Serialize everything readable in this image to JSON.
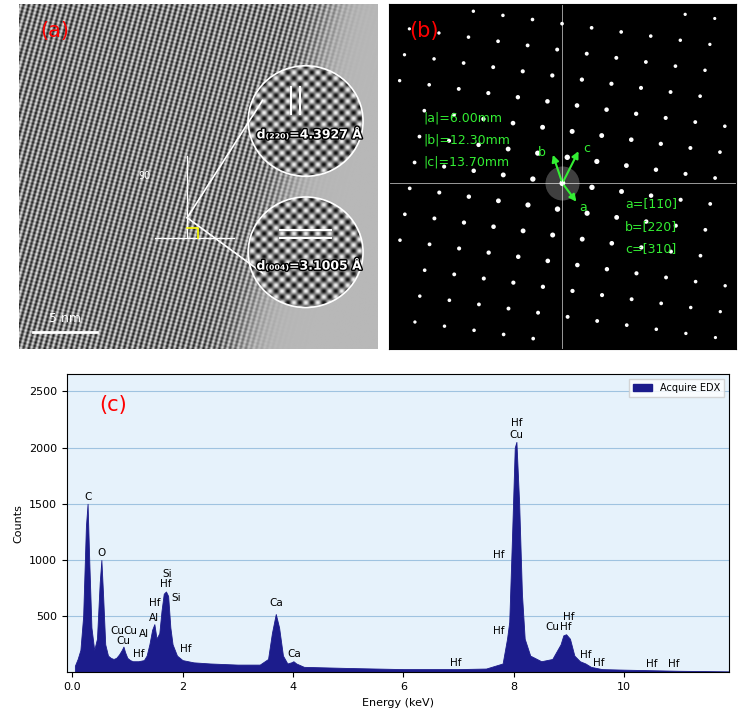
{
  "panel_a": {
    "label": "(a)",
    "scale_bar": "5 nm",
    "angle": "90",
    "insets": [
      {
        "text": "d₍₂₂₀₎=4.3927 Å"
      },
      {
        "text": "d₍₀₀₄₎=3.1005 Å"
      }
    ]
  },
  "panel_b": {
    "label": "(b)",
    "magnitudes": [
      "|a|=6.00mm",
      "|b|=12.30mm",
      "|c|=13.70mm"
    ],
    "indices": [
      "a=[11̄0]",
      "b=[220]",
      "c=[310]"
    ],
    "vectors": [
      "a",
      "b",
      "c"
    ]
  },
  "chart_data": {
    "type": "area",
    "label": "(c)",
    "x_label": "Energy (keV)",
    "y_label": "Counts",
    "xlim": [
      -0.1,
      11.9
    ],
    "ylim": [
      0,
      2650
    ],
    "xticks": [
      {
        "value": 0,
        "label": "0.0"
      },
      2,
      4,
      6,
      8,
      10
    ],
    "yticks": [
      500,
      1000,
      1500,
      2000,
      2500
    ],
    "grid": true,
    "legend": "upper right",
    "series": [
      {
        "name": "Acquire EDX",
        "color": "#1c1c8c",
        "x": [
          0.05,
          0.1,
          0.15,
          0.2,
          0.25,
          0.28,
          0.31,
          0.35,
          0.4,
          0.45,
          0.5,
          0.53,
          0.56,
          0.6,
          0.65,
          0.7,
          0.75,
          0.8,
          0.85,
          0.9,
          0.93,
          0.96,
          1.0,
          1.05,
          1.1,
          1.15,
          1.2,
          1.25,
          1.3,
          1.35,
          1.4,
          1.45,
          1.49,
          1.53,
          1.58,
          1.62,
          1.66,
          1.7,
          1.74,
          1.78,
          1.82,
          1.9,
          2.0,
          2.2,
          2.5,
          3.0,
          3.4,
          3.55,
          3.62,
          3.69,
          3.75,
          3.82,
          3.9,
          3.97,
          4.01,
          4.06,
          4.2,
          5.0,
          6.0,
          7.0,
          7.5,
          7.8,
          7.88,
          7.92,
          7.97,
          8.02,
          8.05,
          8.1,
          8.15,
          8.2,
          8.3,
          8.5,
          8.7,
          8.85,
          8.9,
          8.95,
          9.02,
          9.1,
          9.2,
          9.3,
          9.4,
          9.6,
          10.0,
          10.5,
          11.0,
          11.9
        ],
        "values": [
          60,
          120,
          200,
          500,
          1300,
          1500,
          1000,
          400,
          200,
          300,
          800,
          1000,
          700,
          250,
          150,
          130,
          120,
          130,
          160,
          200,
          230,
          180,
          130,
          110,
          100,
          100,
          100,
          105,
          110,
          150,
          250,
          380,
          430,
          300,
          350,
          550,
          700,
          720,
          680,
          400,
          250,
          150,
          110,
          90,
          80,
          70,
          70,
          120,
          350,
          520,
          400,
          150,
          80,
          90,
          100,
          80,
          50,
          40,
          30,
          30,
          35,
          80,
          300,
          450,
          1200,
          2000,
          2050,
          1500,
          700,
          300,
          150,
          100,
          120,
          250,
          330,
          340,
          300,
          150,
          100,
          80,
          50,
          30,
          25,
          20,
          15,
          10
        ]
      }
    ],
    "annotations": [
      {
        "text": "C",
        "x": 0.28,
        "y": 1520,
        "align": "center"
      },
      {
        "text": "O",
        "x": 0.53,
        "y": 1020,
        "align": "center"
      },
      {
        "text": "Cu",
        "x": 0.82,
        "y": 320,
        "align": "center"
      },
      {
        "text": "Cu",
        "x": 1.05,
        "y": 320,
        "align": "center"
      },
      {
        "text": "Cu",
        "x": 0.93,
        "y": 235,
        "align": "center"
      },
      {
        "text": "Hf",
        "x": 1.2,
        "y": 120,
        "align": "center"
      },
      {
        "text": "Al",
        "x": 1.49,
        "y": 440,
        "align": "center"
      },
      {
        "text": "Al",
        "x": 1.4,
        "y": 300,
        "align": "right"
      },
      {
        "text": "Si",
        "x": 1.72,
        "y": 830,
        "align": "center"
      },
      {
        "text": "Hf",
        "x": 1.7,
        "y": 740,
        "align": "center"
      },
      {
        "text": "Hf",
        "x": 1.6,
        "y": 570,
        "align": "right"
      },
      {
        "text": "Si",
        "x": 1.8,
        "y": 620,
        "align": "left"
      },
      {
        "text": "Hf",
        "x": 1.95,
        "y": 160,
        "align": "left"
      },
      {
        "text": "Ca",
        "x": 3.69,
        "y": 570,
        "align": "center"
      },
      {
        "text": "Ca",
        "x": 4.02,
        "y": 120,
        "align": "center"
      },
      {
        "text": "Hf",
        "x": 6.95,
        "y": 40,
        "align": "center"
      },
      {
        "text": "Hf",
        "x": 7.84,
        "y": 1000,
        "align": "right"
      },
      {
        "text": "Hf",
        "x": 7.84,
        "y": 320,
        "align": "right"
      },
      {
        "text": "Cu",
        "x": 8.05,
        "y": 2070,
        "align": "center"
      },
      {
        "text": "Hf",
        "x": 8.05,
        "y": 2170,
        "align": "center"
      },
      {
        "text": "Cu",
        "x": 8.82,
        "y": 360,
        "align": "right"
      },
      {
        "text": "Hf",
        "x": 8.95,
        "y": 360,
        "align": "center"
      },
      {
        "text": "Hf",
        "x": 9.0,
        "y": 450,
        "align": "center"
      },
      {
        "text": "Hf",
        "x": 9.3,
        "y": 110,
        "align": "center"
      },
      {
        "text": "Hf",
        "x": 9.55,
        "y": 40,
        "align": "center"
      },
      {
        "text": "Hf",
        "x": 10.5,
        "y": 30,
        "align": "center"
      },
      {
        "text": "Hf",
        "x": 10.9,
        "y": 30,
        "align": "center"
      }
    ]
  }
}
